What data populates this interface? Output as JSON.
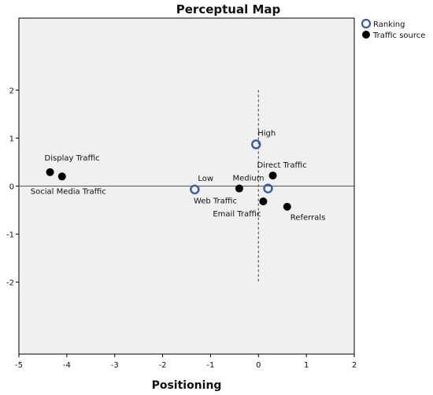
{
  "chart_data": {
    "type": "scatter",
    "title": "Perceptual Map",
    "xlabel": "Positioning",
    "ylabel": "",
    "xlim": [
      -5,
      2
    ],
    "ylim": [
      -3.5,
      3.5
    ],
    "xticks": [
      "-5",
      "-4",
      "-3",
      "-2",
      "-1",
      "0",
      "1",
      "2"
    ],
    "yticks": [
      "2",
      "1",
      "0",
      "-1",
      "-2"
    ],
    "grid": false,
    "legend_position": "top-right",
    "series": [
      {
        "name": "Ranking",
        "marker": "open-circle",
        "color": "#3a5aa8",
        "points": [
          {
            "label": "High",
            "x": -0.05,
            "y": 0.87
          },
          {
            "label": "Low",
            "x": -1.33,
            "y": -0.07
          },
          {
            "label": "Medium",
            "x": 0.2,
            "y": -0.05
          }
        ]
      },
      {
        "name": "Traffic source",
        "marker": "filled-circle",
        "color": "#000000",
        "points": [
          {
            "label": "Display Traffic",
            "x": -4.35,
            "y": 0.29
          },
          {
            "label": "Social Media Traffic",
            "x": -4.1,
            "y": 0.2
          },
          {
            "label": "Web Traffic",
            "x": -0.4,
            "y": -0.05
          },
          {
            "label": "Direct Traffic",
            "x": 0.3,
            "y": 0.22
          },
          {
            "label": "Email Traffic",
            "x": 0.1,
            "y": -0.32
          },
          {
            "label": "Referrals",
            "x": 0.6,
            "y": -0.43
          }
        ]
      }
    ]
  }
}
